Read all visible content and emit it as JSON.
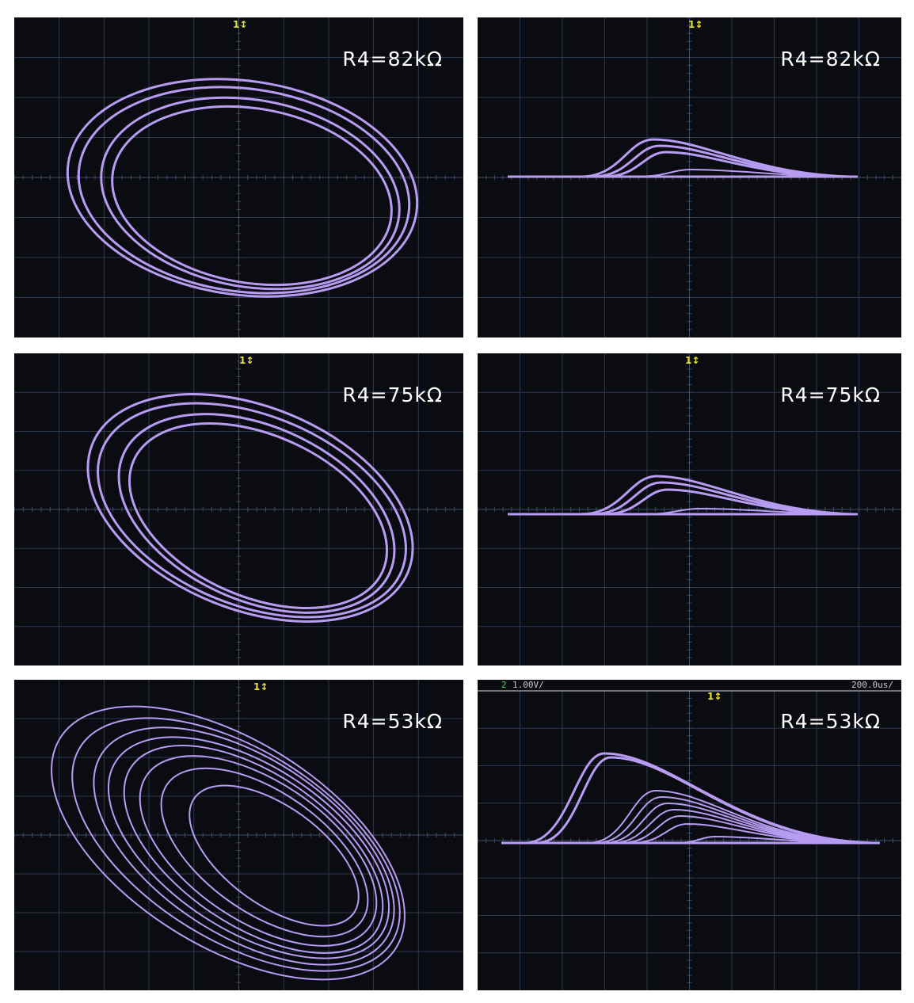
{
  "colors": {
    "screen_background": "#0b0b12",
    "grid": "#2a3a4e",
    "trace": "#b79cf2",
    "trigger_marker": "#e8e23a",
    "label_text": "#ffffff"
  },
  "marker_symbol": "1↕",
  "panels": [
    {
      "id": "phase-82",
      "view": "phase-portrait",
      "label": "R4=82kΩ"
    },
    {
      "id": "time-82",
      "view": "time-waveform",
      "label": "R4=82kΩ"
    },
    {
      "id": "phase-75",
      "view": "phase-portrait",
      "label": "R4=75kΩ"
    },
    {
      "id": "time-75",
      "view": "time-waveform",
      "label": "R4=75kΩ"
    },
    {
      "id": "phase-53",
      "view": "phase-portrait",
      "label": "R4=53kΩ"
    },
    {
      "id": "time-53",
      "view": "time-waveform",
      "label": "R4=53kΩ"
    }
  ],
  "scope_header": {
    "channel": "2",
    "volts_per_div": "1.00V/",
    "time_per_div": "200.0us/"
  }
}
